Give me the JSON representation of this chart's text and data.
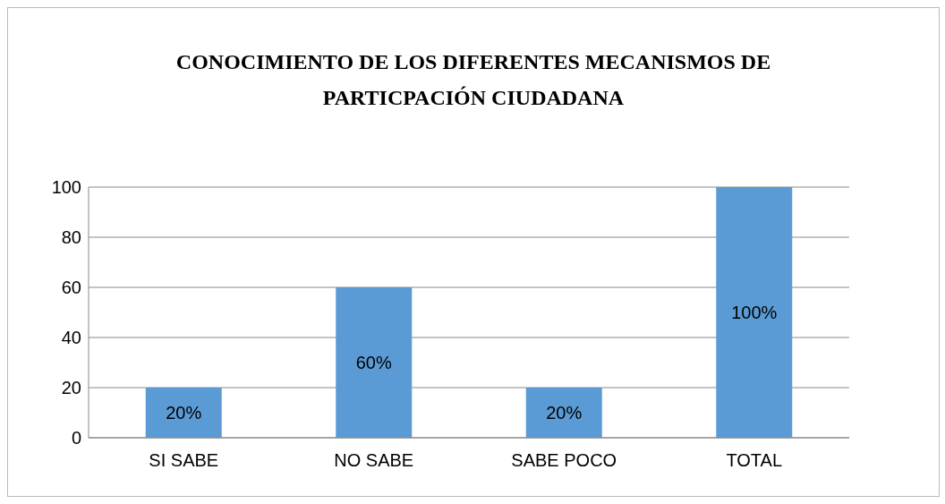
{
  "chart_data": {
    "type": "bar",
    "title": "CONOCIMIENTO DE LOS DIFERENTES MECANISMOS DE PARTICPACIÓN CIUDADANA",
    "categories": [
      "SI SABE",
      "NO SABE",
      "SABE POCO",
      "TOTAL"
    ],
    "values": [
      20,
      60,
      20,
      100
    ],
    "value_labels": [
      "20%",
      "60%",
      "20%",
      "100%"
    ],
    "color": "#5b9bd5",
    "ylim": [
      0,
      100
    ],
    "yticks": [
      0,
      20,
      40,
      60,
      80,
      100
    ],
    "grid": "y"
  }
}
